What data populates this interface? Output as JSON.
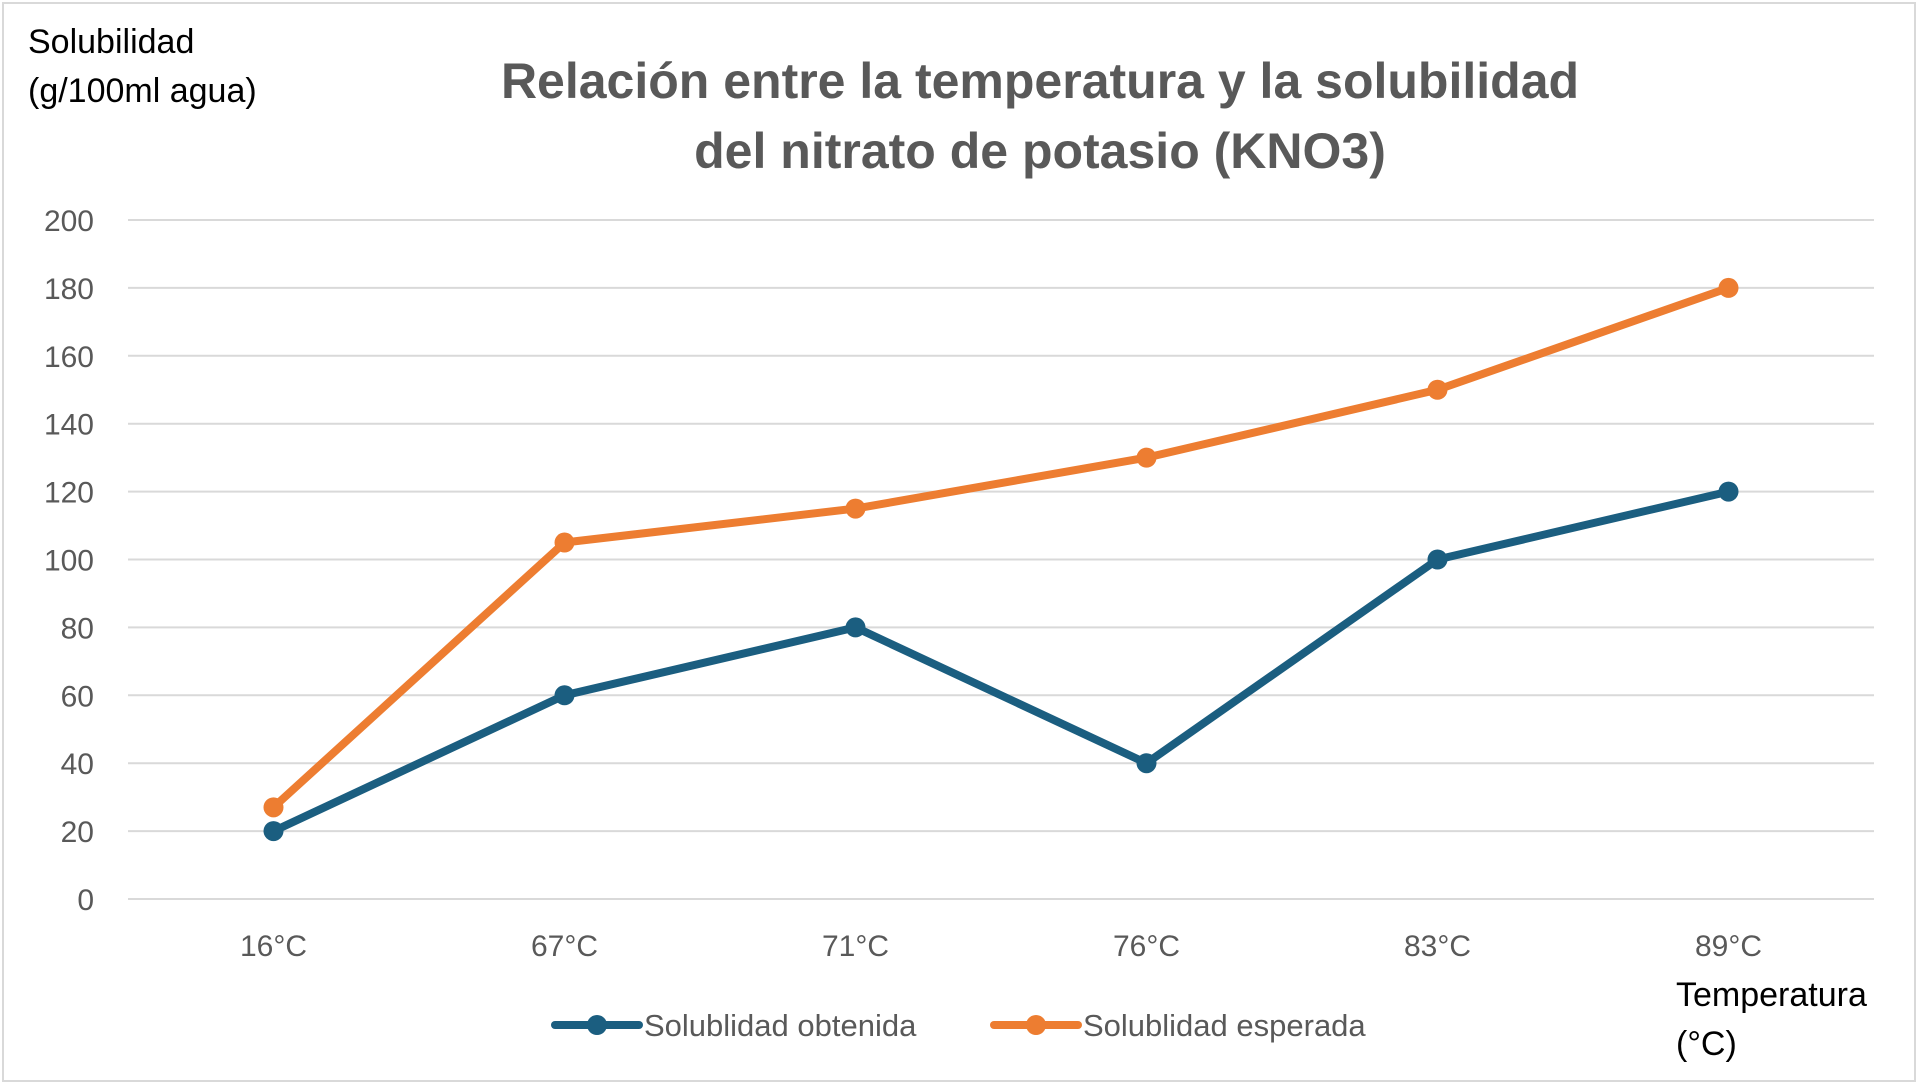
{
  "chart_data": {
    "type": "line",
    "title_lines": [
      "Relación entre la temperatura y la solubilidad",
      "del nitrato de potasio (KNO3)"
    ],
    "ylabel_lines": [
      "Solubilidad",
      "(g/100ml agua)"
    ],
    "xlabel_lines": [
      "Temperatura",
      "(°C)"
    ],
    "categories": [
      "16°C",
      "67°C",
      "71°C",
      "76°C",
      "83°C",
      "89°C"
    ],
    "ylim": [
      0,
      200
    ],
    "yticks": [
      0,
      20,
      40,
      60,
      80,
      100,
      120,
      140,
      160,
      180,
      200
    ],
    "grid": true,
    "legend_position": "bottom",
    "series": [
      {
        "name": "Solublidad obtenida",
        "color": "#1b5e80",
        "values": [
          20,
          60,
          80,
          40,
          100,
          120
        ]
      },
      {
        "name": "Solublidad esperada",
        "color": "#ed7d31",
        "values": [
          27,
          105,
          115,
          130,
          150,
          180
        ]
      }
    ]
  }
}
